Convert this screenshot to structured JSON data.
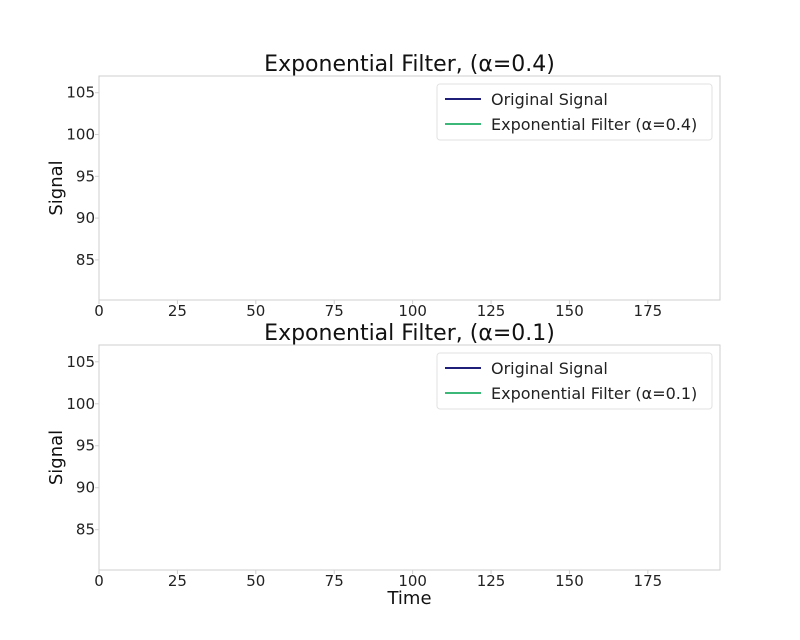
{
  "chart_data": [
    {
      "type": "line",
      "title": "Exponential Filter, (α=0.4)",
      "xlabel": "",
      "ylabel": "Signal",
      "xlim": [
        0,
        198
      ],
      "ylim": [
        80.2,
        107
      ],
      "xticks": [
        0,
        25,
        50,
        75,
        100,
        125,
        150,
        175
      ],
      "yticks": [
        85,
        90,
        95,
        100,
        105
      ],
      "grid": false,
      "legend_position": "top-right",
      "series": [
        {
          "name": "Original Signal",
          "color": "#1f1f7a",
          "x": [],
          "y": []
        },
        {
          "name": "Exponential Filter (α=0.4)",
          "color": "#3cb878",
          "x": [],
          "y": []
        }
      ]
    },
    {
      "type": "line",
      "title": "Exponential Filter, (α=0.1)",
      "xlabel": "Time",
      "ylabel": "Signal",
      "xlim": [
        0,
        198
      ],
      "ylim": [
        80.2,
        107
      ],
      "xticks": [
        0,
        25,
        50,
        75,
        100,
        125,
        150,
        175
      ],
      "yticks": [
        85,
        90,
        95,
        100,
        105
      ],
      "grid": false,
      "legend_position": "top-right",
      "series": [
        {
          "name": "Original Signal",
          "color": "#1f1f7a",
          "x": [],
          "y": []
        },
        {
          "name": "Exponential Filter (α=0.1)",
          "color": "#3cb878",
          "x": [],
          "y": []
        }
      ]
    }
  ]
}
